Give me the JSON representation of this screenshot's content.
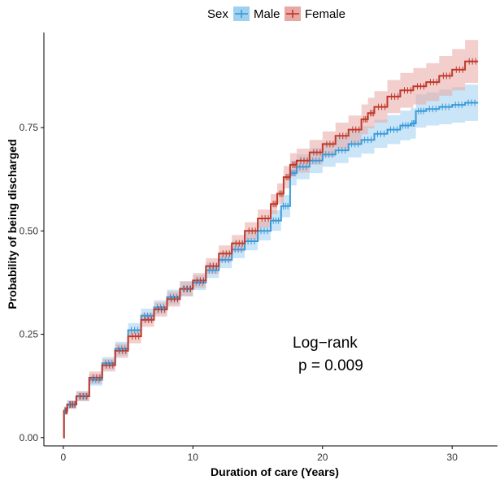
{
  "chart_data": {
    "type": "line",
    "subtype": "kaplan-meier",
    "title": "",
    "xlabel": "Duration of care (Years)",
    "ylabel": "Probability of being discharged",
    "xlim": [
      -1.5,
      33.5
    ],
    "ylim": [
      -0.02,
      0.98
    ],
    "x_ticks": [
      0,
      10,
      20,
      30
    ],
    "x_tick_labels": [
      "0",
      "10",
      "20",
      "30"
    ],
    "y_ticks": [
      0,
      0.25,
      0.5,
      0.75
    ],
    "y_tick_labels": [
      "0.00",
      "0.25",
      "0.50",
      "0.75"
    ],
    "grid": false,
    "legend": {
      "title": "Sex",
      "position": "top",
      "entries": [
        "Male",
        "Female"
      ]
    },
    "annotations": [
      "Log−rank",
      "p = 0.009"
    ],
    "series": [
      {
        "name": "Male",
        "color": "#3a9ad9",
        "band_color": "#9fd0f0",
        "x": [
          0,
          0.05,
          0.3,
          1,
          2,
          3,
          4,
          5,
          6,
          7,
          8,
          9,
          10,
          11,
          12,
          13,
          14,
          15,
          16,
          16.8,
          17.5,
          18,
          19,
          20,
          21,
          22,
          23,
          24,
          25,
          26,
          26.8,
          27.2,
          28,
          29,
          30,
          31,
          32
        ],
        "y": [
          0,
          0.065,
          0.08,
          0.1,
          0.14,
          0.18,
          0.215,
          0.26,
          0.295,
          0.315,
          0.34,
          0.36,
          0.375,
          0.405,
          0.43,
          0.455,
          0.475,
          0.5,
          0.525,
          0.56,
          0.64,
          0.655,
          0.67,
          0.685,
          0.695,
          0.71,
          0.72,
          0.735,
          0.745,
          0.755,
          0.76,
          0.79,
          0.795,
          0.8,
          0.805,
          0.81,
          0.81
        ],
        "lower": [
          0,
          0.055,
          0.07,
          0.088,
          0.126,
          0.165,
          0.198,
          0.243,
          0.278,
          0.298,
          0.322,
          0.342,
          0.357,
          0.386,
          0.41,
          0.434,
          0.453,
          0.477,
          0.5,
          0.533,
          0.61,
          0.625,
          0.64,
          0.655,
          0.664,
          0.678,
          0.687,
          0.701,
          0.71,
          0.719,
          0.723,
          0.75,
          0.755,
          0.758,
          0.762,
          0.766,
          0.766
        ],
        "upper": [
          0,
          0.075,
          0.09,
          0.112,
          0.154,
          0.195,
          0.232,
          0.277,
          0.312,
          0.332,
          0.358,
          0.378,
          0.393,
          0.424,
          0.45,
          0.476,
          0.497,
          0.523,
          0.55,
          0.587,
          0.67,
          0.685,
          0.7,
          0.715,
          0.726,
          0.742,
          0.753,
          0.769,
          0.78,
          0.791,
          0.797,
          0.83,
          0.835,
          0.842,
          0.848,
          0.854,
          0.854
        ]
      },
      {
        "name": "Female",
        "color": "#c0392b",
        "band_color": "#e8a8a4",
        "x": [
          0,
          0.05,
          0.3,
          1,
          2,
          3,
          4,
          5,
          6,
          7,
          8,
          9,
          10,
          11,
          12,
          13,
          14,
          15,
          16,
          16.5,
          17,
          17.5,
          18,
          19,
          20,
          21,
          22,
          23,
          23.5,
          24,
          25,
          26,
          27,
          28,
          29,
          30,
          31,
          32
        ],
        "y": [
          0,
          0.065,
          0.08,
          0.1,
          0.145,
          0.175,
          0.21,
          0.245,
          0.285,
          0.31,
          0.335,
          0.36,
          0.38,
          0.415,
          0.445,
          0.47,
          0.5,
          0.53,
          0.565,
          0.59,
          0.63,
          0.66,
          0.67,
          0.69,
          0.71,
          0.73,
          0.745,
          0.77,
          0.785,
          0.8,
          0.825,
          0.84,
          0.85,
          0.86,
          0.875,
          0.89,
          0.91,
          0.91
        ],
        "lower": [
          0,
          0.055,
          0.07,
          0.088,
          0.13,
          0.16,
          0.193,
          0.228,
          0.268,
          0.293,
          0.317,
          0.342,
          0.362,
          0.396,
          0.425,
          0.45,
          0.479,
          0.508,
          0.541,
          0.565,
          0.603,
          0.632,
          0.641,
          0.66,
          0.679,
          0.698,
          0.711,
          0.734,
          0.748,
          0.762,
          0.785,
          0.798,
          0.806,
          0.814,
          0.827,
          0.84,
          0.858,
          0.858
        ],
        "upper": [
          0,
          0.075,
          0.09,
          0.112,
          0.16,
          0.19,
          0.227,
          0.262,
          0.302,
          0.327,
          0.353,
          0.378,
          0.398,
          0.434,
          0.465,
          0.49,
          0.521,
          0.552,
          0.589,
          0.615,
          0.657,
          0.688,
          0.699,
          0.72,
          0.741,
          0.762,
          0.779,
          0.806,
          0.822,
          0.838,
          0.865,
          0.882,
          0.894,
          0.906,
          0.923,
          0.94,
          0.962,
          0.962
        ]
      }
    ]
  }
}
